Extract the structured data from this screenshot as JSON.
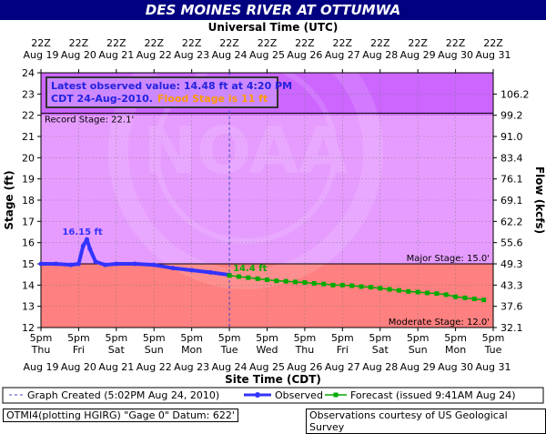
{
  "page": {
    "title": "DES MOINES RIVER AT OTTUMWA",
    "footer_left": "OTMI4(plotting HGIRG) \"Gage 0\" Datum: 622'",
    "footer_right": "Observations courtesy of US Geological Survey"
  },
  "chart_data": {
    "type": "line",
    "title": "DES MOINES RIVER AT OTTUMWA",
    "top_axis_title": "Universal Time (UTC)",
    "bottom_axis_title": "Site Time (CDT)",
    "ylabel": "Stage (ft)",
    "y2label": "Flow (kcfs)",
    "ylim": [
      12,
      24
    ],
    "yticks": [
      "12",
      "13",
      "14",
      "15",
      "16",
      "17",
      "18",
      "19",
      "20",
      "21",
      "22",
      "23",
      "24"
    ],
    "y2ticks": [
      {
        "stage": 12.0,
        "label": "32.1"
      },
      {
        "stage": 13.0,
        "label": "37.6"
      },
      {
        "stage": 14.0,
        "label": "43.3"
      },
      {
        "stage": 15.0,
        "label": "49.3"
      },
      {
        "stage": 16.0,
        "label": "55.6"
      },
      {
        "stage": 17.0,
        "label": "62.2"
      },
      {
        "stage": 18.0,
        "label": "69.1"
      },
      {
        "stage": 19.0,
        "label": "76.1"
      },
      {
        "stage": 20.0,
        "label": "83.4"
      },
      {
        "stage": 21.0,
        "label": "91.0"
      },
      {
        "stage": 22.0,
        "label": "99.2"
      },
      {
        "stage": 23.0,
        "label": "106.2"
      }
    ],
    "x_days": [
      "Aug 19",
      "Aug 20",
      "Aug 21",
      "Aug 22",
      "Aug 23",
      "Aug 24",
      "Aug 25",
      "Aug 26",
      "Aug 27",
      "Aug 28",
      "Aug 29",
      "Aug 30",
      "Aug 31"
    ],
    "top_time": "22Z",
    "bottom_time": "5pm",
    "weekdays": [
      "Thu",
      "Fri",
      "Sat",
      "Sun",
      "Mon",
      "Tue",
      "Wed",
      "Thu",
      "Fri",
      "Sat",
      "Sun",
      "Mon",
      "Tue"
    ],
    "bands": [
      {
        "name": "moderate-flood",
        "from": 12,
        "to": 15,
        "color": "#ff8080"
      },
      {
        "name": "above-major",
        "from": 15,
        "to": 22,
        "color": "#e69cff"
      },
      {
        "name": "above-record",
        "from": 22,
        "to": 24,
        "color": "#cc66ff"
      }
    ],
    "thresholds": [
      {
        "name": "record",
        "value": 22.1,
        "label": "Record Stage: 22.1'"
      },
      {
        "name": "major",
        "value": 15.0,
        "label": "Major Stage: 15.0'"
      },
      {
        "name": "moderate",
        "value": 12.0,
        "label": "Moderate Stage: 12.0'"
      }
    ],
    "info_box": {
      "line1": "Latest observed value: 14.48 ft at 4:20 PM",
      "line2": "CDT 24-Aug-2010.",
      "flood": "Flood Stage is 11 ft"
    },
    "peak_label": "16.15 ft",
    "forecast_start_label": "14.4 ft",
    "observed": {
      "name": "Observed",
      "color": "#3333ff",
      "days": [
        0,
        0.4,
        0.8,
        1.0,
        1.12,
        1.22,
        1.3,
        1.45,
        1.7,
        2.0,
        2.5,
        3.0,
        3.5,
        4.0,
        4.5,
        5.0
      ],
      "values": [
        15.0,
        15.0,
        14.95,
        15.0,
        15.85,
        16.15,
        15.7,
        15.1,
        14.95,
        15.0,
        15.0,
        14.95,
        14.8,
        14.7,
        14.6,
        14.48
      ]
    },
    "forecast": {
      "name": "Forecast (issued 9:41AM Aug 24)",
      "color": "#00aa00",
      "days": [
        5.0,
        5.25,
        5.5,
        5.75,
        6.0,
        6.25,
        6.5,
        6.75,
        7.0,
        7.25,
        7.5,
        7.75,
        8.0,
        8.25,
        8.5,
        8.75,
        9.0,
        9.25,
        9.5,
        9.75,
        10.0,
        10.25,
        10.5,
        10.75,
        11.0,
        11.25,
        11.5,
        11.75
      ],
      "values": [
        14.45,
        14.4,
        14.35,
        14.3,
        14.25,
        14.2,
        14.18,
        14.15,
        14.12,
        14.08,
        14.05,
        14.0,
        14.0,
        13.97,
        13.93,
        13.9,
        13.85,
        13.8,
        13.75,
        13.7,
        13.67,
        13.63,
        13.6,
        13.55,
        13.45,
        13.4,
        13.35,
        13.3
      ]
    },
    "legend": {
      "graph_created": "Graph Created (5:02PM Aug 24, 2010)",
      "observed": "Observed",
      "forecast": "Forecast (issued 9:41AM Aug 24)"
    },
    "watermark": "NOAA",
    "grid": true
  }
}
